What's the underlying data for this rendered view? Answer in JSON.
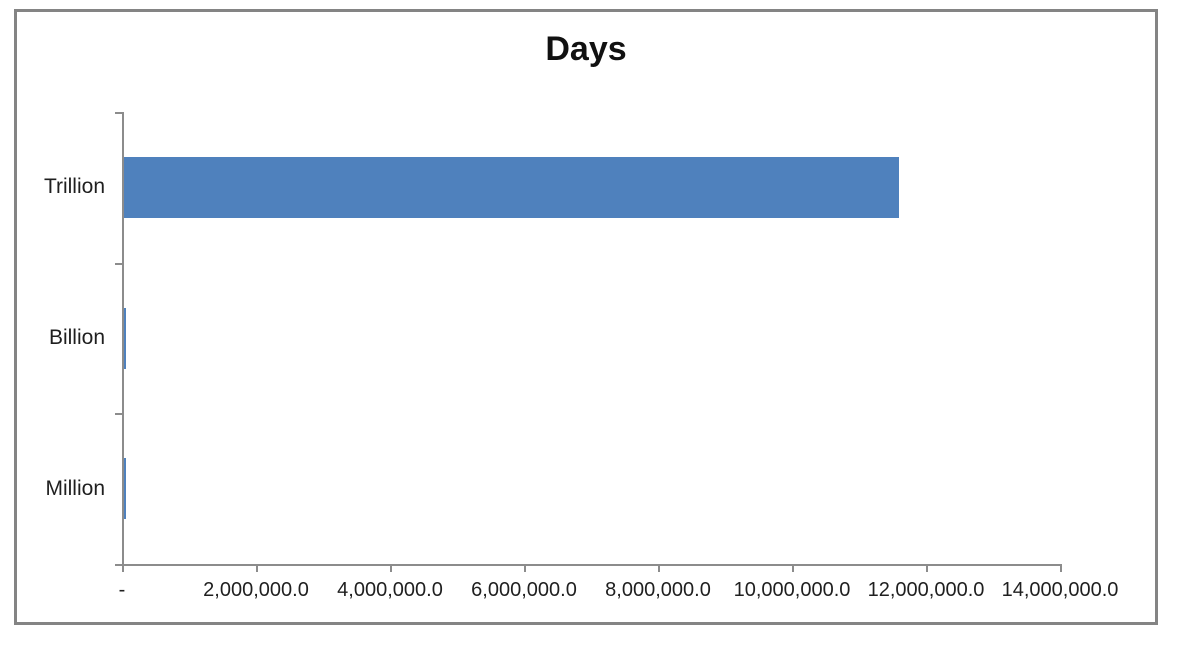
{
  "chart_data": {
    "type": "bar",
    "orientation": "horizontal",
    "title": "Days",
    "categories": [
      "Trillion",
      "Billion",
      "Million"
    ],
    "values": [
      11574074.1,
      11574.1,
      11.6
    ],
    "xlabel": "",
    "ylabel": "",
    "xlim": [
      0,
      14000000
    ],
    "x_tick_interval": 2000000,
    "x_tick_labels": [
      "-",
      "2,000,000.0",
      "4,000,000.0",
      "6,000,000.0",
      "8,000,000.0",
      "10,000,000.0",
      "12,000,000.0",
      "14,000,000.0"
    ],
    "grid": "off",
    "legend": "none",
    "bar_color": "#4F81BD",
    "axis_color": "#8C8C8C",
    "text_color": "#1F1F1F",
    "frame_border_color": "#848484"
  }
}
